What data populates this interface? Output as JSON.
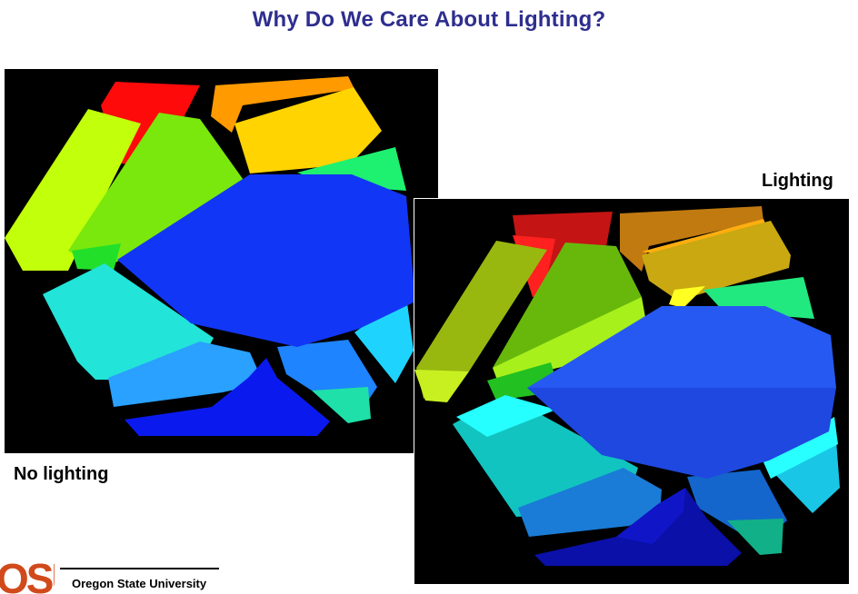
{
  "slide": {
    "title": "Why Do We Care About Lighting?",
    "caption_left": "No lighting",
    "caption_right": "Lighting",
    "logo_text": "OSU",
    "footer": "Oregon State University"
  }
}
